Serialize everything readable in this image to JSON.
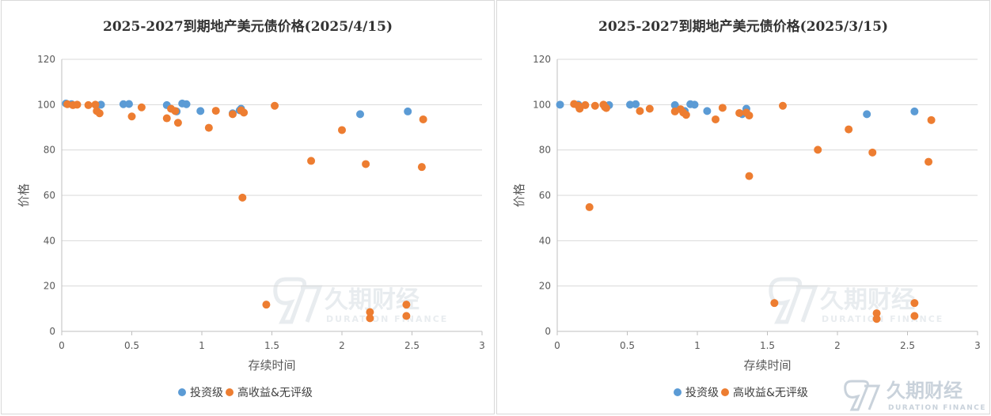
{
  "colors": {
    "investment_grade": "#5b9bd5",
    "high_yield": "#ed7d31",
    "grid": "#d9d9d9",
    "text": "#595959",
    "watermark": "#d6dde3"
  },
  "watermark": {
    "cn": "久期财经",
    "en": "DURATION FINANCE",
    "mark_icon": "duration-finance-logo-icon"
  },
  "chart_data": [
    {
      "type": "scatter",
      "title": "2025-2027到期地产美元债价格(2025/4/15)",
      "xlabel": "存续时间",
      "ylabel": "价格",
      "xlim": [
        0,
        3
      ],
      "ylim": [
        0,
        120
      ],
      "xticks": [
        "0",
        "0.5",
        "1",
        "1.5",
        "2",
        "2.5",
        "3"
      ],
      "yticks": [
        "0",
        "20",
        "40",
        "60",
        "80",
        "100",
        "120"
      ],
      "grid": true,
      "legend_position": "bottom",
      "series": [
        {
          "name": "投资级",
          "color": "#5b9bd5",
          "points": [
            [
              0.03,
              100.5
            ],
            [
              0.07,
              100.2
            ],
            [
              0.28,
              100
            ],
            [
              0.44,
              100.2
            ],
            [
              0.48,
              100.3
            ],
            [
              0.75,
              99.8
            ],
            [
              0.82,
              97
            ],
            [
              0.86,
              100.5
            ],
            [
              0.89,
              100.2
            ],
            [
              0.99,
              97.2
            ],
            [
              1.22,
              96.2
            ],
            [
              1.27,
              97.5
            ],
            [
              1.28,
              98.2
            ],
            [
              2.13,
              95.8
            ],
            [
              2.47,
              97
            ]
          ]
        },
        {
          "name": "高收益&无评级",
          "color": "#ed7d31",
          "points": [
            [
              0.04,
              100.2
            ],
            [
              0.08,
              99.8
            ],
            [
              0.11,
              100
            ],
            [
              0.19,
              99.8
            ],
            [
              0.24,
              100
            ],
            [
              0.25,
              97.2
            ],
            [
              0.27,
              96.2
            ],
            [
              0.5,
              94.8
            ],
            [
              0.57,
              98.8
            ],
            [
              0.75,
              94
            ],
            [
              0.78,
              98.2
            ],
            [
              0.81,
              97.2
            ],
            [
              0.83,
              92
            ],
            [
              1.05,
              89.8
            ],
            [
              1.1,
              97.3
            ],
            [
              1.22,
              95.8
            ],
            [
              1.28,
              97.5
            ],
            [
              1.3,
              96.5
            ],
            [
              1.29,
              59
            ],
            [
              1.46,
              11.8
            ],
            [
              1.52,
              99.5
            ],
            [
              1.78,
              75.2
            ],
            [
              2,
              88.8
            ],
            [
              2.17,
              73.8
            ],
            [
              2.2,
              8.5
            ],
            [
              2.2,
              5.8
            ],
            [
              2.46,
              11.8
            ],
            [
              2.46,
              6.8
            ],
            [
              2.57,
              72.5
            ],
            [
              2.58,
              93.5
            ]
          ]
        }
      ]
    },
    {
      "type": "scatter",
      "title": "2025-2027到期地产美元债价格(2025/3/15)",
      "xlabel": "存续时间",
      "ylabel": "价格",
      "xlim": [
        0,
        3
      ],
      "ylim": [
        0,
        120
      ],
      "xticks": [
        "0",
        "0.5",
        "1",
        "1.5",
        "2",
        "2.5",
        "3"
      ],
      "yticks": [
        "0",
        "20",
        "40",
        "60",
        "80",
        "100",
        "120"
      ],
      "grid": true,
      "legend_position": "bottom",
      "series": [
        {
          "name": "投资级",
          "color": "#5b9bd5",
          "points": [
            [
              0.02,
              100
            ],
            [
              0.15,
              100
            ],
            [
              0.37,
              99.8
            ],
            [
              0.52,
              100
            ],
            [
              0.56,
              100.2
            ],
            [
              0.84,
              99.8
            ],
            [
              0.91,
              97.2
            ],
            [
              0.95,
              100.2
            ],
            [
              0.98,
              100
            ],
            [
              1.07,
              97.2
            ],
            [
              1.32,
              95.8
            ],
            [
              1.35,
              98.2
            ],
            [
              2.21,
              95.8
            ],
            [
              2.55,
              97
            ]
          ]
        },
        {
          "name": "高收益&无评级",
          "color": "#ed7d31",
          "points": [
            [
              0.12,
              100.3
            ],
            [
              0.15,
              99.5
            ],
            [
              0.16,
              98.2
            ],
            [
              0.2,
              99.8
            ],
            [
              0.23,
              54.8
            ],
            [
              0.27,
              99.5
            ],
            [
              0.33,
              100
            ],
            [
              0.34,
              99
            ],
            [
              0.35,
              98.5
            ],
            [
              0.59,
              97.2
            ],
            [
              0.66,
              98.2
            ],
            [
              0.84,
              97
            ],
            [
              0.88,
              98
            ],
            [
              0.9,
              96.5
            ],
            [
              0.92,
              95.5
            ],
            [
              1.13,
              93.5
            ],
            [
              1.18,
              98.6
            ],
            [
              1.3,
              96.3
            ],
            [
              1.35,
              96.5
            ],
            [
              1.37,
              95.2
            ],
            [
              1.37,
              68.5
            ],
            [
              1.55,
              12.5
            ],
            [
              1.61,
              99.5
            ],
            [
              1.86,
              80.1
            ],
            [
              2.08,
              89.1
            ],
            [
              2.25,
              78.9
            ],
            [
              2.28,
              8
            ],
            [
              2.28,
              5.5
            ],
            [
              2.55,
              12.5
            ],
            [
              2.55,
              6.8
            ],
            [
              2.65,
              74.8
            ],
            [
              2.67,
              93.2
            ]
          ]
        }
      ]
    }
  ]
}
